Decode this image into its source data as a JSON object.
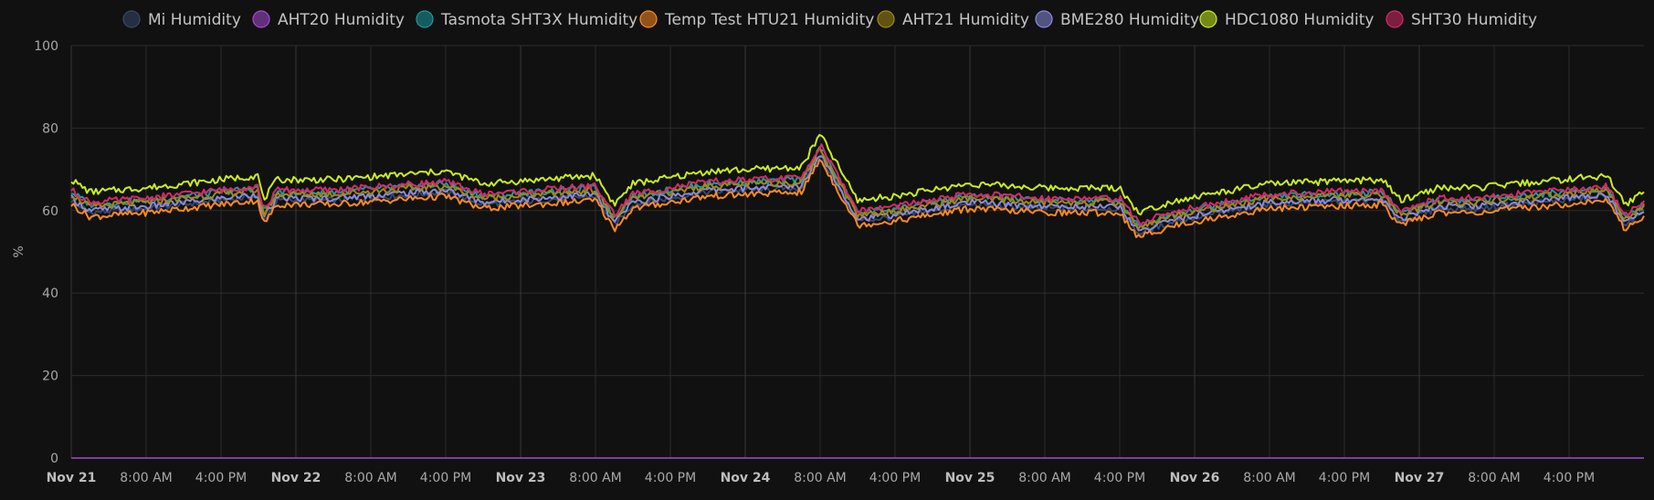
{
  "chart_data": {
    "type": "line",
    "title": "",
    "xlabel": "",
    "ylabel": "%",
    "ylim": [
      0,
      100
    ],
    "yticks": [
      0,
      20,
      40,
      60,
      80,
      100
    ],
    "xlim": [
      "Nov 21 00:00",
      "Nov 27 23:59"
    ],
    "xticks": [
      {
        "label": "Nov 21",
        "major": true
      },
      {
        "label": "8:00 AM",
        "major": false
      },
      {
        "label": "4:00 PM",
        "major": false
      },
      {
        "label": "Nov 22",
        "major": true
      },
      {
        "label": "8:00 AM",
        "major": false
      },
      {
        "label": "4:00 PM",
        "major": false
      },
      {
        "label": "Nov 23",
        "major": true
      },
      {
        "label": "8:00 AM",
        "major": false
      },
      {
        "label": "4:00 PM",
        "major": false
      },
      {
        "label": "Nov 24",
        "major": true
      },
      {
        "label": "8:00 AM",
        "major": false
      },
      {
        "label": "4:00 PM",
        "major": false
      },
      {
        "label": "Nov 25",
        "major": true
      },
      {
        "label": "8:00 AM",
        "major": false
      },
      {
        "label": "4:00 PM",
        "major": false
      },
      {
        "label": "Nov 26",
        "major": true
      },
      {
        "label": "8:00 AM",
        "major": false
      },
      {
        "label": "4:00 PM",
        "major": false
      },
      {
        "label": "Nov 27",
        "major": true
      },
      {
        "label": "8:00 AM",
        "major": false
      },
      {
        "label": "4:00 PM",
        "major": false
      }
    ],
    "grid": true,
    "legend_position": "top",
    "series": [
      {
        "name": "Mi Humidity",
        "color": "#36486a",
        "offset": -1.5
      },
      {
        "name": "AHT20 Humidity",
        "color": "#a64ad2",
        "flat": 0
      },
      {
        "name": "Tasmota SHT3X Humidity",
        "color": "#1a9ba3",
        "offset": 0.5
      },
      {
        "name": "Temp Test HTU21 Humidity",
        "color": "#ff8a1f",
        "offset": -2.5
      },
      {
        "name": "AHT21 Humidity",
        "color": "#a08a10",
        "offset": 0
      },
      {
        "name": "BME280 Humidity",
        "color": "#8a8ae0",
        "offset": -1
      },
      {
        "name": "HDC1080 Humidity",
        "color": "#c8ef1b",
        "offset": 3.5
      },
      {
        "name": "SHT30 Humidity",
        "color": "#d42a68",
        "offset": 1
      }
    ],
    "base_profile_hours": [
      0,
      2,
      8,
      20,
      20.5,
      22,
      28,
      40,
      44,
      56,
      58,
      60,
      68,
      78,
      80,
      84,
      88,
      96,
      104,
      112,
      114,
      118,
      128,
      140,
      142,
      146,
      150,
      164,
      166,
      168
    ],
    "base_profile_values": [
      64,
      61,
      62,
      65,
      59,
      64,
      64,
      66,
      63,
      65,
      58,
      63,
      66,
      67,
      75,
      59,
      60,
      63,
      62,
      62,
      56,
      59,
      63,
      64,
      59,
      62,
      62,
      65,
      58,
      61
    ]
  }
}
